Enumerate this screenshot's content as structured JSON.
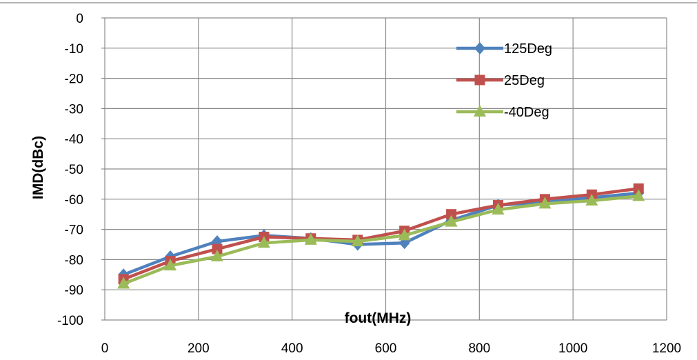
{
  "chart_data": {
    "type": "line",
    "title": "",
    "xlabel": "fout(MHz)",
    "ylabel": "IMD(dBc)",
    "xlim": [
      0,
      1200
    ],
    "ylim": [
      -100,
      0
    ],
    "xticks": [
      0,
      200,
      400,
      600,
      800,
      1000,
      1200
    ],
    "yticks": [
      0,
      -10,
      -20,
      -30,
      -40,
      -50,
      -60,
      -70,
      -80,
      -90,
      -100
    ],
    "grid": true,
    "legend_position": "top-right",
    "x": [
      40,
      140,
      240,
      340,
      440,
      540,
      640,
      740,
      840,
      940,
      1040,
      1140
    ],
    "series": [
      {
        "name": "125Deg",
        "color": "#4F81BD",
        "marker": "diamond",
        "values": [
          -85,
          -79,
          -74,
          -72,
          -73,
          -75,
          -74.5,
          -67,
          -62,
          -61,
          -59.5,
          -58
        ]
      },
      {
        "name": "25Deg",
        "color": "#C0504D",
        "marker": "square",
        "values": [
          -86.5,
          -80.5,
          -76.5,
          -72.5,
          -73,
          -73.5,
          -70.5,
          -65,
          -62,
          -60,
          -58.5,
          -56.5
        ]
      },
      {
        "name": "-40Deg",
        "color": "#9BBB59",
        "marker": "triangle",
        "values": [
          -88,
          -82,
          -79,
          -74.5,
          -73.5,
          -74,
          -72,
          -67.5,
          -63.5,
          -61.5,
          -60.5,
          -59
        ]
      }
    ]
  }
}
